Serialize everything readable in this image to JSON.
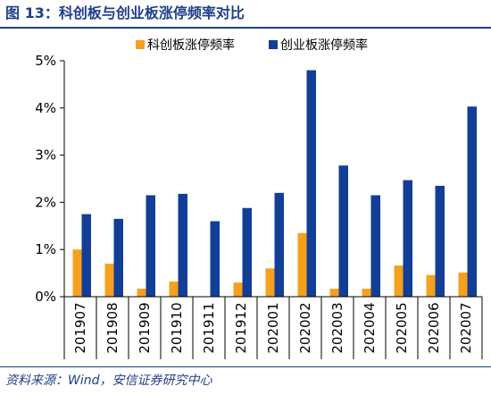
{
  "figure": {
    "title": "图 13：科创板与创业板涨停频率对比",
    "source": "资料来源：Wind，安信证券研究中心"
  },
  "chart_data": {
    "type": "bar",
    "categories": [
      "201907",
      "201908",
      "201909",
      "201910",
      "201911",
      "201912",
      "202001",
      "202002",
      "202003",
      "202004",
      "202005",
      "202006",
      "202007"
    ],
    "series": [
      {
        "name": "科创板涨停频率",
        "color": "#f5a01f",
        "values": [
          1.0,
          0.7,
          0.17,
          0.32,
          0.0,
          0.3,
          0.6,
          1.35,
          0.17,
          0.17,
          0.66,
          0.46,
          0.51
        ]
      },
      {
        "name": "创业板涨停频率",
        "color": "#123e96",
        "values": [
          1.75,
          1.65,
          2.15,
          2.18,
          1.6,
          1.88,
          2.2,
          4.8,
          2.78,
          2.15,
          2.47,
          2.35,
          4.03
        ]
      }
    ],
    "yticks": [
      "0%",
      "1%",
      "2%",
      "3%",
      "4%",
      "5%"
    ],
    "ylim": [
      0,
      5
    ],
    "unit": "%",
    "legend_position": "top",
    "grid": false
  }
}
